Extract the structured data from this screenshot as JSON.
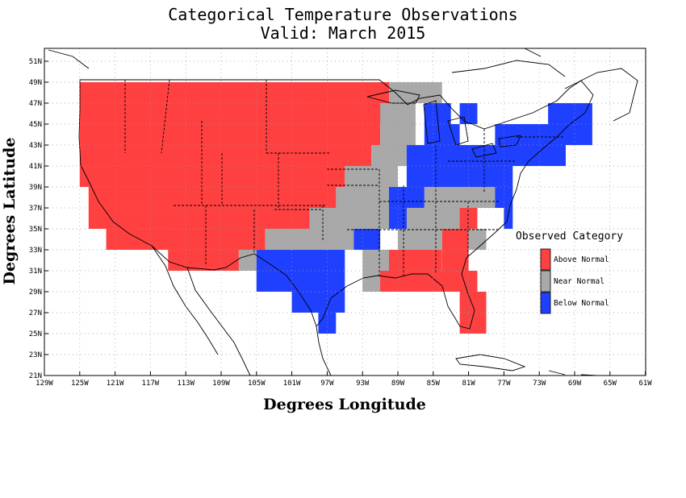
{
  "title": "Categorical Temperature Observations",
  "subtitle": "Valid: March 2015",
  "colors": {
    "above": "#ff4040",
    "near": "#a9a9a9",
    "below": "#2040ff",
    "grid": "#999999"
  },
  "chart_data": {
    "type": "heatmap",
    "xlabel": "Degrees Longitude",
    "ylabel": "Degrees Latitude",
    "xlim": [
      -129,
      -61
    ],
    "ylim": [
      21,
      52
    ],
    "grid": true,
    "legend_placement": "right",
    "x_ticks": [
      {
        "value": -129,
        "label": "129W"
      },
      {
        "value": -125,
        "label": "125W"
      },
      {
        "value": -121,
        "label": "121W"
      },
      {
        "value": -117,
        "label": "117W"
      },
      {
        "value": -113,
        "label": "113W"
      },
      {
        "value": -109,
        "label": "109W"
      },
      {
        "value": -105,
        "label": "105W"
      },
      {
        "value": -101,
        "label": "101W"
      },
      {
        "value": -97,
        "label": "97W"
      },
      {
        "value": -93,
        "label": "93W"
      },
      {
        "value": -89,
        "label": "89W"
      },
      {
        "value": -85,
        "label": "85W"
      },
      {
        "value": -81,
        "label": "81W"
      },
      {
        "value": -77,
        "label": "77W"
      },
      {
        "value": -73,
        "label": "73W"
      },
      {
        "value": -69,
        "label": "69W"
      },
      {
        "value": -65,
        "label": "65W"
      },
      {
        "value": -61,
        "label": "61W"
      }
    ],
    "y_ticks": [
      {
        "value": 21,
        "label": "21N"
      },
      {
        "value": 23,
        "label": "23N"
      },
      {
        "value": 25,
        "label": "25N"
      },
      {
        "value": 27,
        "label": "27N"
      },
      {
        "value": 29,
        "label": "29N"
      },
      {
        "value": 31,
        "label": "31N"
      },
      {
        "value": 33,
        "label": "33N"
      },
      {
        "value": 35,
        "label": "35N"
      },
      {
        "value": 37,
        "label": "37N"
      },
      {
        "value": 39,
        "label": "39N"
      },
      {
        "value": 41,
        "label": "41N"
      },
      {
        "value": 43,
        "label": "43N"
      },
      {
        "value": 45,
        "label": "45N"
      },
      {
        "value": 47,
        "label": "47N"
      },
      {
        "value": 49,
        "label": "49N"
      },
      {
        "value": 51,
        "label": "51N"
      }
    ],
    "categories": [
      {
        "key": "above",
        "label": "Above Normal"
      },
      {
        "key": "near",
        "label": "Near Normal"
      },
      {
        "key": "below",
        "label": "Below Normal"
      }
    ],
    "legend_title": "Observed Category",
    "cells": [
      {
        "lon": [
          -125,
          -90
        ],
        "lat": [
          45,
          49
        ],
        "cat": "above"
      },
      {
        "lon": [
          -125,
          -91
        ],
        "lat": [
          43,
          45
        ],
        "cat": "above"
      },
      {
        "lon": [
          -125,
          -92
        ],
        "lat": [
          41,
          43
        ],
        "cat": "above"
      },
      {
        "lon": [
          -125,
          -95
        ],
        "lat": [
          39,
          41
        ],
        "cat": "above"
      },
      {
        "lon": [
          -124,
          -96
        ],
        "lat": [
          37,
          39
        ],
        "cat": "above"
      },
      {
        "lon": [
          -124,
          -99
        ],
        "lat": [
          35,
          37
        ],
        "cat": "above"
      },
      {
        "lon": [
          -122,
          -104
        ],
        "lat": [
          33,
          35
        ],
        "cat": "above"
      },
      {
        "lon": [
          -115,
          -107
        ],
        "lat": [
          31,
          33
        ],
        "cat": "above"
      },
      {
        "lon": [
          -90,
          -84
        ],
        "lat": [
          47,
          49
        ],
        "cat": "near"
      },
      {
        "lon": [
          -91,
          -87
        ],
        "lat": [
          43,
          47
        ],
        "cat": "near"
      },
      {
        "lon": [
          -92,
          -88
        ],
        "lat": [
          41,
          43
        ],
        "cat": "near"
      },
      {
        "lon": [
          -95,
          -89
        ],
        "lat": [
          39,
          41
        ],
        "cat": "near"
      },
      {
        "lon": [
          -96,
          -90
        ],
        "lat": [
          37,
          39
        ],
        "cat": "near"
      },
      {
        "lon": [
          -99,
          -90
        ],
        "lat": [
          35,
          37
        ],
        "cat": "near"
      },
      {
        "lon": [
          -104,
          -94
        ],
        "lat": [
          33,
          35
        ],
        "cat": "near"
      },
      {
        "lon": [
          -107,
          -105
        ],
        "lat": [
          31,
          33
        ],
        "cat": "near"
      },
      {
        "lon": [
          -93,
          -90
        ],
        "lat": [
          29,
          33
        ],
        "cat": "near"
      },
      {
        "lon": [
          -86,
          -78
        ],
        "lat": [
          37,
          39
        ],
        "cat": "near"
      },
      {
        "lon": [
          -90,
          -80
        ],
        "lat": [
          35,
          37
        ],
        "cat": "near"
      },
      {
        "lon": [
          -89,
          -84
        ],
        "lat": [
          33,
          35
        ],
        "cat": "near"
      },
      {
        "lon": [
          -82,
          -79
        ],
        "lat": [
          33,
          35
        ],
        "cat": "near"
      },
      {
        "lon": [
          -86,
          -83
        ],
        "lat": [
          45,
          47
        ],
        "cat": "below"
      },
      {
        "lon": [
          -82,
          -80
        ],
        "lat": [
          45,
          47
        ],
        "cat": "below"
      },
      {
        "lon": [
          -72,
          -67
        ],
        "lat": [
          45,
          47
        ],
        "cat": "below"
      },
      {
        "lon": [
          -86,
          -82
        ],
        "lat": [
          43,
          45
        ],
        "cat": "below"
      },
      {
        "lon": [
          -78,
          -67
        ],
        "lat": [
          43,
          45
        ],
        "cat": "below"
      },
      {
        "lon": [
          -88,
          -70
        ],
        "lat": [
          41,
          43
        ],
        "cat": "below"
      },
      {
        "lon": [
          -88,
          -76
        ],
        "lat": [
          39,
          41
        ],
        "cat": "below"
      },
      {
        "lon": [
          -90,
          -86
        ],
        "lat": [
          37,
          39
        ],
        "cat": "below"
      },
      {
        "lon": [
          -78,
          -76
        ],
        "lat": [
          37,
          39
        ],
        "cat": "below"
      },
      {
        "lon": [
          -90,
          -88
        ],
        "lat": [
          35,
          37
        ],
        "cat": "below"
      },
      {
        "lon": [
          -77,
          -76
        ],
        "lat": [
          35,
          37
        ],
        "cat": "below"
      },
      {
        "lon": [
          -94,
          -91
        ],
        "lat": [
          33,
          35
        ],
        "cat": "below"
      },
      {
        "lon": [
          -105,
          -95
        ],
        "lat": [
          29,
          33
        ],
        "cat": "below"
      },
      {
        "lon": [
          -101,
          -95
        ],
        "lat": [
          27,
          29
        ],
        "cat": "below"
      },
      {
        "lon": [
          -98,
          -96
        ],
        "lat": [
          25,
          27
        ],
        "cat": "below"
      },
      {
        "lon": [
          -90,
          -84
        ],
        "lat": [
          31,
          33
        ],
        "cat": "above"
      },
      {
        "lon": [
          -84,
          -81
        ],
        "lat": [
          31,
          35
        ],
        "cat": "above"
      },
      {
        "lon": [
          -82,
          -80
        ],
        "lat": [
          35,
          37
        ],
        "cat": "above"
      },
      {
        "lon": [
          -91,
          -80
        ],
        "lat": [
          29,
          31
        ],
        "cat": "above"
      },
      {
        "lon": [
          -82,
          -79
        ],
        "lat": [
          25,
          29
        ],
        "cat": "above"
      }
    ]
  }
}
